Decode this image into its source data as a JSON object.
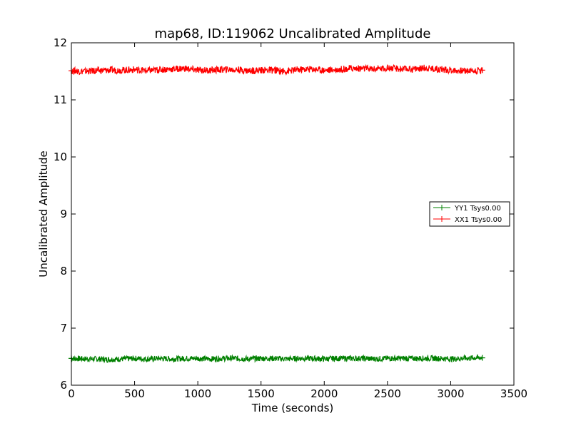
{
  "chart_data": {
    "type": "line",
    "title": "map68, ID:119062 Uncalibrated Amplitude",
    "xlabel": "Time (seconds)",
    "ylabel": "Uncalibrated Amplitude",
    "xlim": [
      0,
      3500
    ],
    "ylim": [
      6,
      12
    ],
    "xticks": [
      "0",
      "500",
      "1000",
      "1500",
      "2000",
      "2500",
      "3000",
      "3500"
    ],
    "yticks": [
      "6",
      "7",
      "8",
      "9",
      "10",
      "11",
      "12"
    ],
    "grid": false,
    "legend_position": "right",
    "series": [
      {
        "name": "YY1 Tsys0.00",
        "color": "#008000",
        "marker": "+",
        "x": [
          0,
          100,
          200,
          300,
          400,
          500,
          600,
          700,
          800,
          900,
          1000,
          1100,
          1200,
          1300,
          1400,
          1500,
          1600,
          1700,
          1800,
          1900,
          2000,
          2100,
          2200,
          2300,
          2400,
          2500,
          2600,
          2700,
          2800,
          2900,
          3000,
          3100,
          3200,
          3250
        ],
        "values": [
          6.47,
          6.46,
          6.46,
          6.45,
          6.46,
          6.47,
          6.46,
          6.47,
          6.46,
          6.47,
          6.47,
          6.46,
          6.47,
          6.47,
          6.46,
          6.47,
          6.47,
          6.46,
          6.47,
          6.47,
          6.46,
          6.47,
          6.47,
          6.47,
          6.46,
          6.47,
          6.47,
          6.47,
          6.47,
          6.47,
          6.46,
          6.47,
          6.48,
          6.48
        ],
        "spread": 0.05
      },
      {
        "name": "XX1 Tsys0.00",
        "color": "#ff0000",
        "marker": "+",
        "x": [
          0,
          100,
          200,
          300,
          400,
          500,
          600,
          700,
          800,
          900,
          1000,
          1100,
          1200,
          1300,
          1400,
          1500,
          1600,
          1700,
          1800,
          1900,
          2000,
          2100,
          2200,
          2300,
          2400,
          2500,
          2600,
          2700,
          2800,
          2900,
          3000,
          3100,
          3200,
          3250
        ],
        "values": [
          11.51,
          11.5,
          11.51,
          11.52,
          11.52,
          11.53,
          11.51,
          11.53,
          11.54,
          11.55,
          11.52,
          11.52,
          11.53,
          11.53,
          11.51,
          11.52,
          11.52,
          11.5,
          11.53,
          11.54,
          11.52,
          11.53,
          11.55,
          11.55,
          11.54,
          11.56,
          11.54,
          11.54,
          11.56,
          11.54,
          11.52,
          11.51,
          11.51,
          11.52
        ],
        "spread": 0.06
      }
    ]
  }
}
